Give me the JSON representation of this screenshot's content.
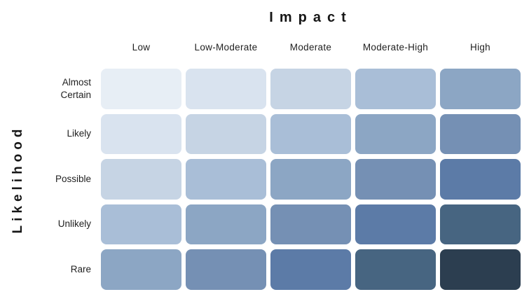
{
  "axis_titles": {
    "impact": "Impact",
    "likelihood": "Likelihood"
  },
  "columns": [
    "Low",
    "Low-Moderate",
    "Moderate",
    "Moderate-High",
    "High"
  ],
  "rows": [
    "Almost Certain",
    "Likely",
    "Possible",
    "Unlikely",
    "Rare"
  ],
  "palette": [
    "#e7eef5",
    "#d9e3ef",
    "#c6d4e4",
    "#a9bed7",
    "#8ca6c4",
    "#7590b4",
    "#5c7ba7",
    "#476581",
    "#2c3e50"
  ],
  "chart_data": {
    "type": "heatmap",
    "title": "",
    "xlabel": "Impact",
    "ylabel": "Likelihood",
    "x_categories": [
      "Low",
      "Low-Moderate",
      "Moderate",
      "Moderate-High",
      "High"
    ],
    "y_categories": [
      "Almost Certain",
      "Likely",
      "Possible",
      "Unlikely",
      "Rare"
    ],
    "values": [
      [
        1,
        2,
        3,
        4,
        5
      ],
      [
        2,
        3,
        4,
        5,
        6
      ],
      [
        3,
        4,
        5,
        6,
        7
      ],
      [
        4,
        5,
        6,
        7,
        8
      ],
      [
        5,
        6,
        7,
        8,
        9
      ]
    ],
    "value_meaning": "relative risk level, 1 (lowest, lightest blue) to 9 (highest, darkest navy); cell color = palette[value - 1]",
    "cell_colors": [
      [
        "#e7eef5",
        "#d9e3ef",
        "#c6d4e4",
        "#a9bed7",
        "#8ca6c4"
      ],
      [
        "#d9e3ef",
        "#c6d4e4",
        "#a9bed7",
        "#8ca6c4",
        "#7590b4"
      ],
      [
        "#c6d4e4",
        "#a9bed7",
        "#8ca6c4",
        "#7590b4",
        "#5c7ba7"
      ],
      [
        "#a9bed7",
        "#8ca6c4",
        "#7590b4",
        "#5c7ba7",
        "#476581"
      ],
      [
        "#8ca6c4",
        "#7590b4",
        "#5c7ba7",
        "#476581",
        "#2c3e50"
      ]
    ],
    "legend": "none",
    "grid": "off"
  }
}
